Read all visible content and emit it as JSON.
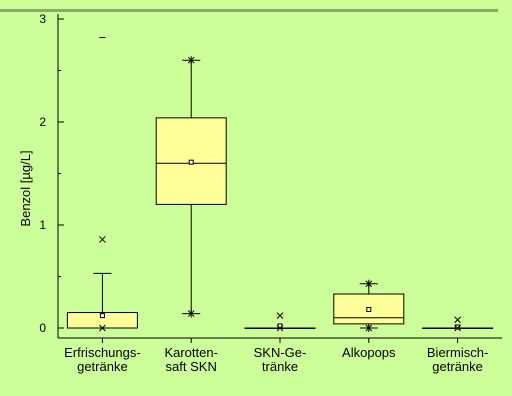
{
  "colors": {
    "background": "#ccff99",
    "box_fill": "#ffff99",
    "line": "#000000"
  },
  "chart_data": {
    "type": "box",
    "ylabel": "Benzol [µg/L]",
    "ylim": [
      -0.1,
      3.1
    ],
    "yticks": [
      0,
      1,
      2,
      3
    ],
    "categories": [
      [
        "Erfrischungs-",
        "getränke"
      ],
      [
        "Karotten-",
        "saft SKN"
      ],
      [
        "SKN-Ge-",
        "tränke"
      ],
      [
        "Alkopops"
      ],
      [
        "Biermisch-",
        "getränke"
      ]
    ],
    "boxes": [
      {
        "q1": 0.0,
        "median": 0.0,
        "q3": 0.15,
        "whisker_low": 0.0,
        "whisker_high": 0.53,
        "mean": 0.12,
        "p1": 0.0,
        "p99": 0.86,
        "max": 2.82
      },
      {
        "q1": 1.2,
        "median": 1.6,
        "q3": 2.04,
        "whisker_low": 0.14,
        "whisker_high": 2.6,
        "mean": 1.61,
        "p1": 0.14,
        "p99": 2.6,
        "max": null
      },
      {
        "q1": 0.0,
        "median": 0.0,
        "q3": 0.0,
        "whisker_low": 0.0,
        "whisker_high": 0.0,
        "mean": 0.02,
        "p1": 0.0,
        "p99": 0.12,
        "max": null
      },
      {
        "q1": 0.04,
        "median": 0.1,
        "q3": 0.33,
        "whisker_low": 0.0,
        "whisker_high": 0.43,
        "mean": 0.18,
        "p1": 0.0,
        "p99": 0.43,
        "max": null
      },
      {
        "q1": 0.0,
        "median": 0.0,
        "q3": 0.0,
        "whisker_low": 0.0,
        "whisker_high": 0.0,
        "mean": 0.01,
        "p1": 0.0,
        "p99": 0.08,
        "max": null
      }
    ]
  }
}
